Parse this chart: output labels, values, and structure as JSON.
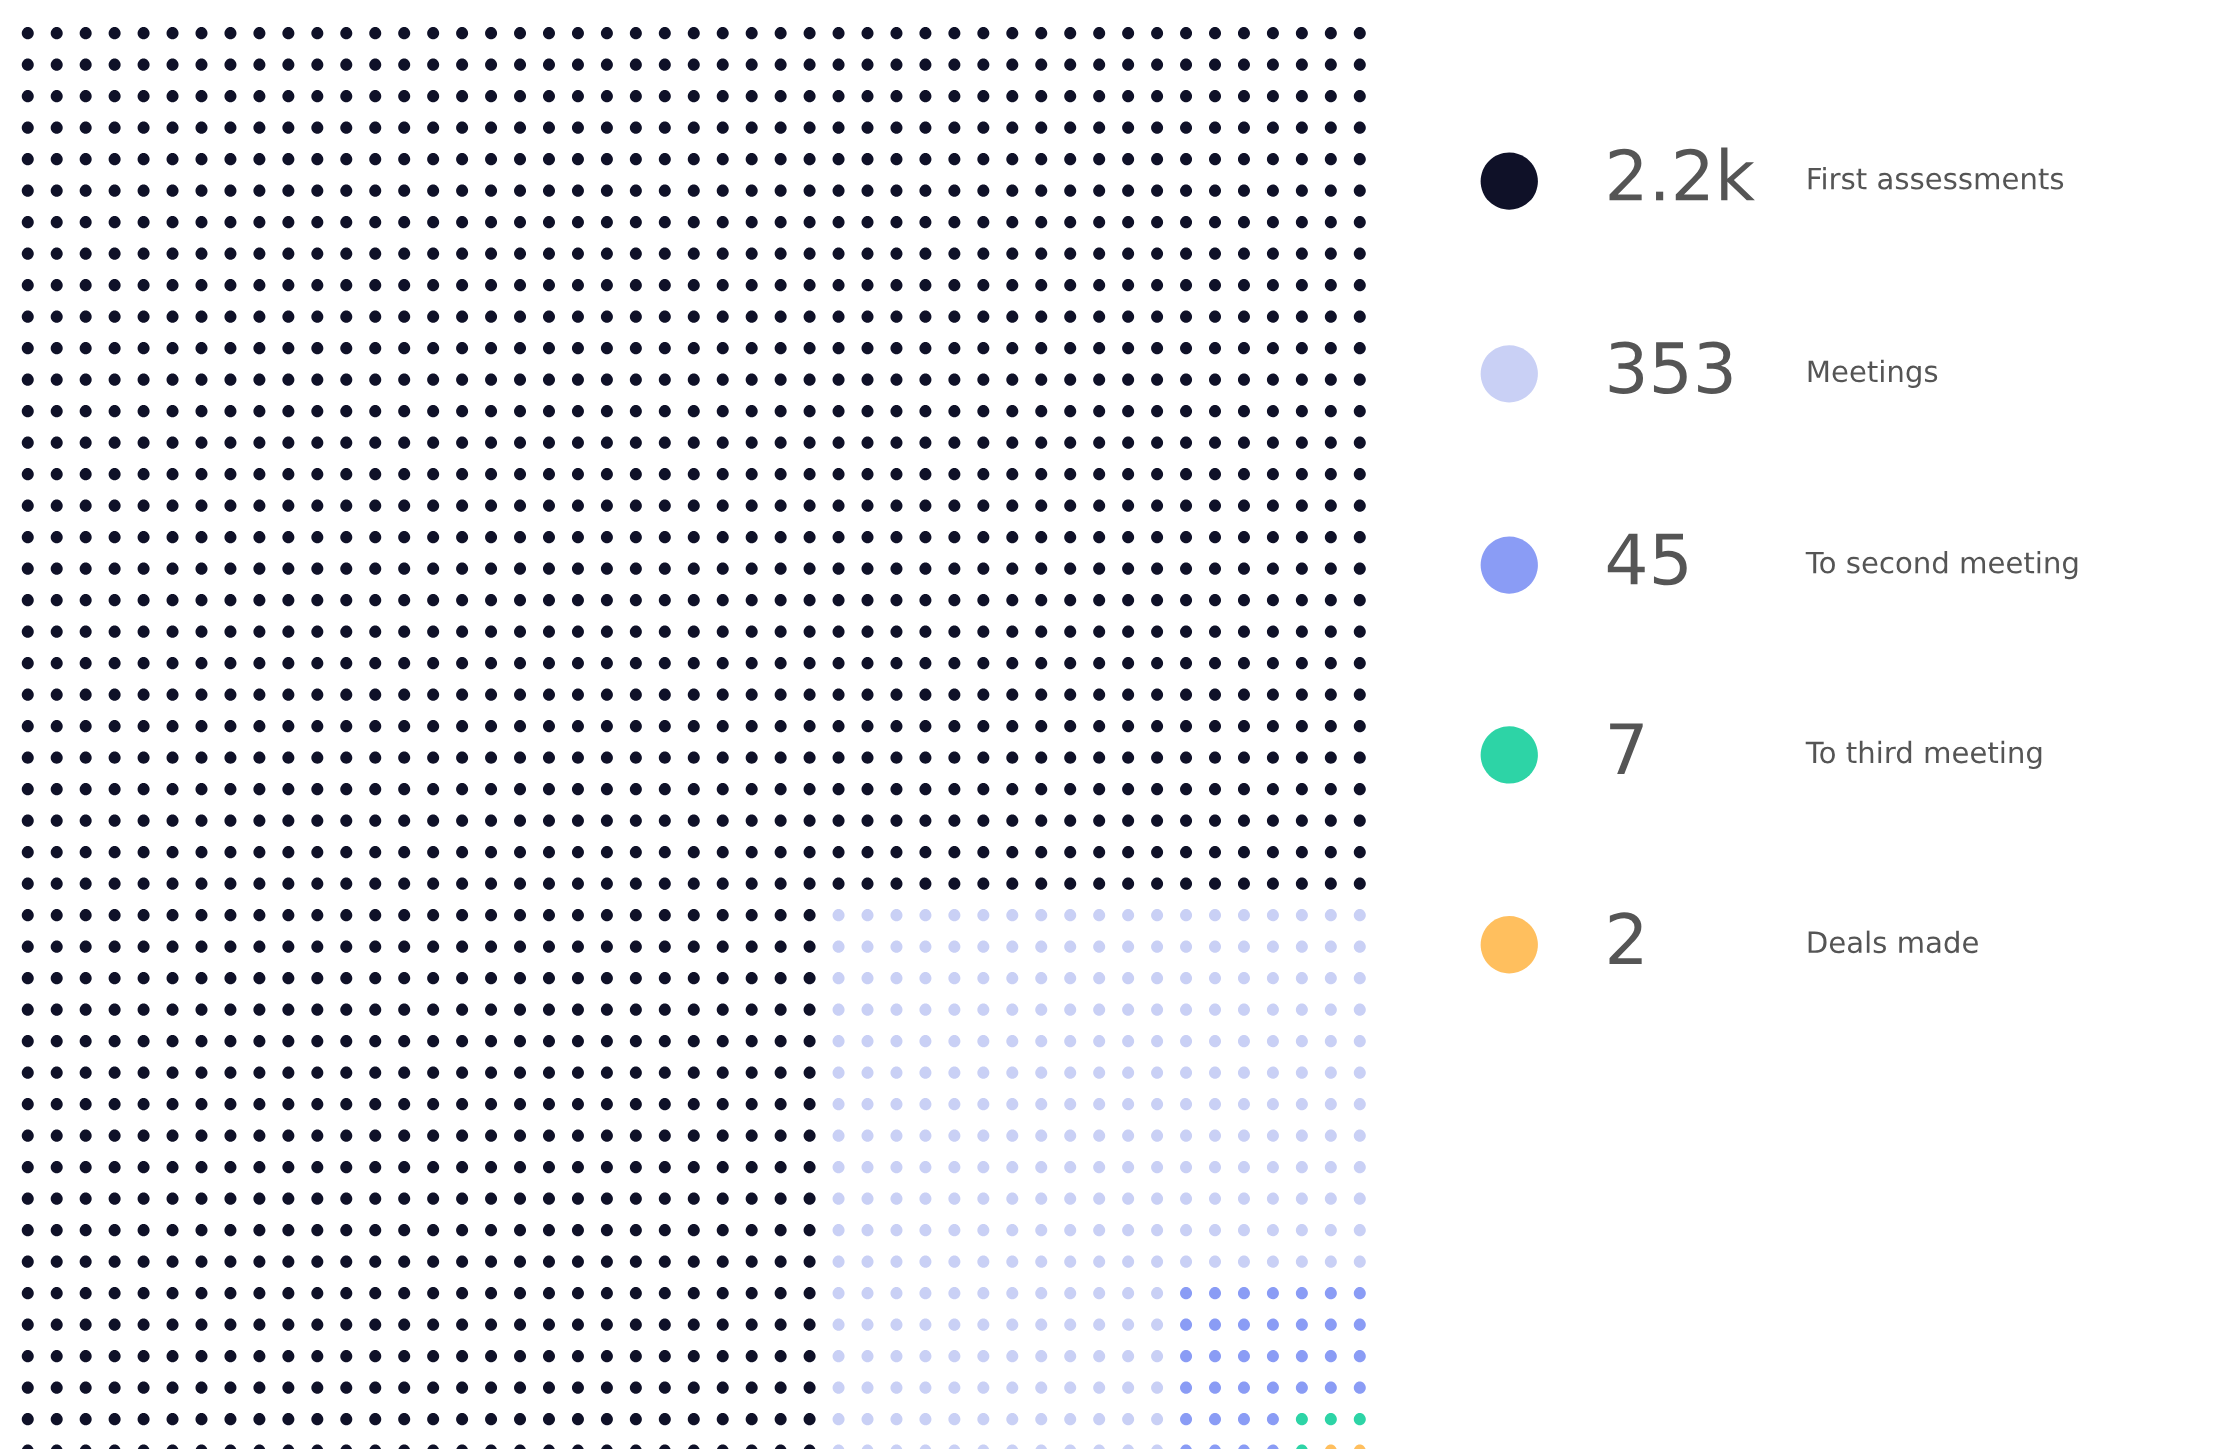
{
  "chart_data": {
    "type": "other",
    "categories": [
      "First assessments",
      "Meetings",
      "To second meeting",
      "To third meeting",
      "Deals made"
    ],
    "values": [
      2200,
      353,
      45,
      7,
      2
    ],
    "value_labels": [
      "2.2k",
      "353",
      "45",
      "7",
      "2"
    ],
    "colors": [
      "#0f1128",
      "#c9d0f5",
      "#8a9cf5",
      "#2dd4a6",
      "#ffbf5e"
    ]
  }
}
